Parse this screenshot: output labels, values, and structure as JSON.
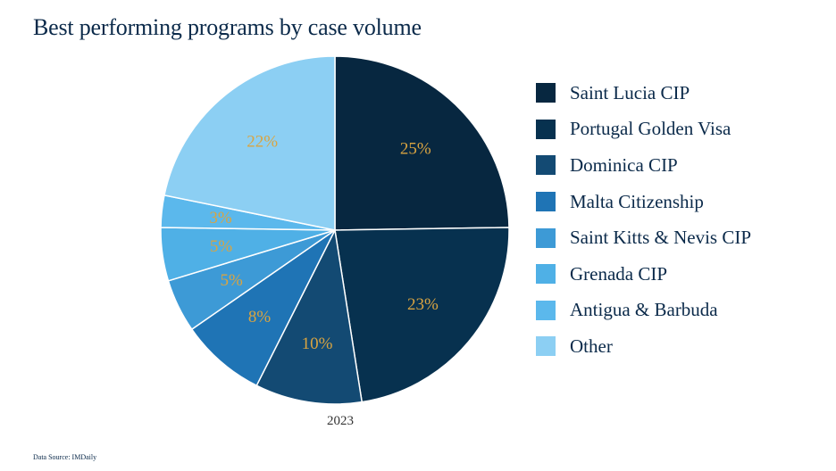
{
  "title": "Best performing programs by case volume",
  "source": "Data Source: IMDaily",
  "colors": {
    "label": "#d9a441",
    "slices": [
      "#072740",
      "#07314f",
      "#134a73",
      "#1f74b5",
      "#3d9ad6",
      "#4fb0e6",
      "#5bb8ec",
      "#8ccff3"
    ]
  },
  "chart_data": {
    "type": "pie",
    "xlabel": "2023",
    "categories": [
      "Saint Lucia CIP",
      "Portugal Golden Visa",
      "Dominica CIP",
      "Malta Citizenship",
      "Saint Kitts & Nevis CIP",
      "Grenada CIP",
      "Antigua & Barbuda",
      "Other"
    ],
    "values": [
      25,
      23,
      10,
      8,
      5,
      5,
      3,
      22
    ],
    "value_labels": [
      "25%",
      "23%",
      "10%",
      "8%",
      "5%",
      "5%",
      "3%",
      "22%"
    ],
    "start_angle": "12 o'clock",
    "direction": "clockwise",
    "legend_position": "right"
  }
}
